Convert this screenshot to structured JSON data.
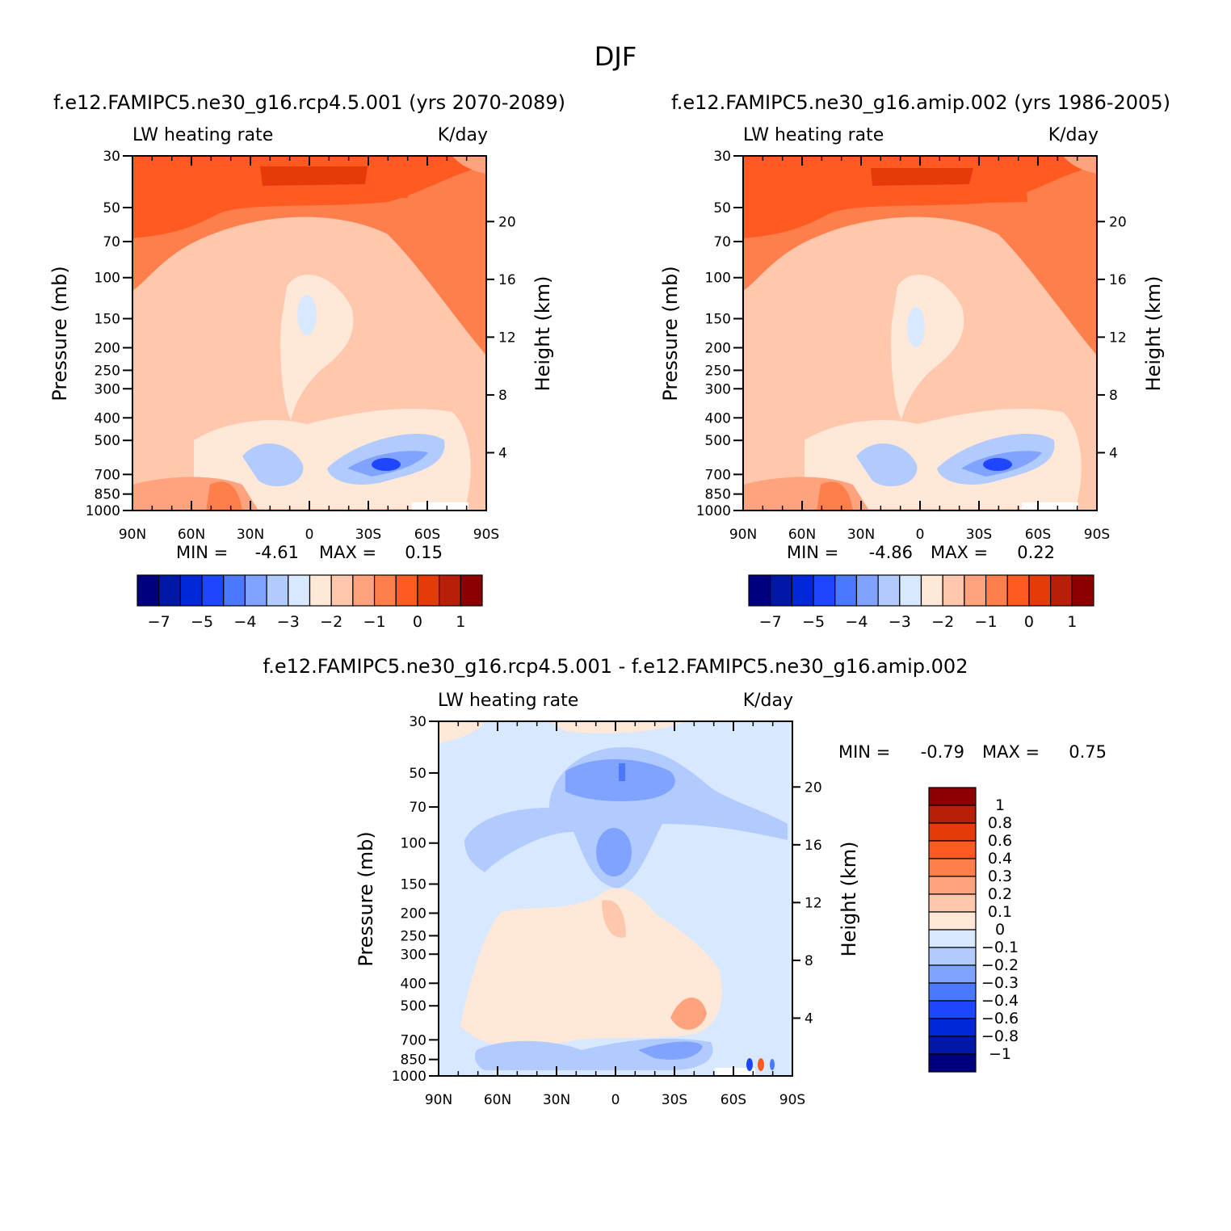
{
  "figure_title": "DJF",
  "colors": {
    "palette": [
      "#00007f",
      "#0018a8",
      "#0028d8",
      "#1e46ff",
      "#4a79ff",
      "#7fa3ff",
      "#b2cbff",
      "#d8e8ff",
      "#ffe8d8",
      "#ffc8ad",
      "#ffa37f",
      "#ff7f4c",
      "#ff5a20",
      "#e63a0a",
      "#b81e08",
      "#8c0000"
    ],
    "diff_palette": [
      "#00007f",
      "#0018a8",
      "#0028d8",
      "#1e46ff",
      "#4a79ff",
      "#7fa3ff",
      "#b2cbff",
      "#d8e8ff",
      "#ffe8d8",
      "#ffc8ad",
      "#ffa37f",
      "#ff7f4c",
      "#ff5a20",
      "#e63a0a",
      "#b81e08",
      "#8c0000"
    ]
  },
  "chart_data": [
    {
      "id": "panel-future",
      "type": "contour",
      "title": "f.e12.FAMIPC5.ne30_g16.rcp4.5.001 (yrs 2070-2089)",
      "left_label": "LW heating rate",
      "right_label": "K/day",
      "ylabel": "Pressure (mb)",
      "y2label": "Height (km)",
      "x_ticks": [
        "90N",
        "60N",
        "30N",
        "0",
        "30S",
        "60S",
        "90S"
      ],
      "x_range": [
        90,
        -90
      ],
      "y_ticks": [
        "30",
        "50",
        "70",
        "100",
        "150",
        "200",
        "250",
        "300",
        "400",
        "500",
        "700",
        "850",
        "1000"
      ],
      "y_range": [
        30,
        1000
      ],
      "height_ticks": [
        "20",
        "16",
        "12",
        "8",
        "4"
      ],
      "min_label": "MIN =",
      "min_value": "-4.61",
      "max_label": "MAX =",
      "max_value": "0.15",
      "colorbar_labels": [
        "-7",
        "-5",
        "-4",
        "-3",
        "-2",
        "-1",
        "0",
        "1"
      ]
    },
    {
      "id": "panel-control",
      "type": "contour",
      "title": "f.e12.FAMIPC5.ne30_g16.amip.002 (yrs 1986-2005)",
      "left_label": "LW heating rate",
      "right_label": "K/day",
      "ylabel": "Pressure (mb)",
      "y2label": "Height (km)",
      "x_ticks": [
        "90N",
        "60N",
        "30N",
        "0",
        "30S",
        "60S",
        "90S"
      ],
      "x_range": [
        90,
        -90
      ],
      "y_ticks": [
        "30",
        "50",
        "70",
        "100",
        "150",
        "200",
        "250",
        "300",
        "400",
        "500",
        "700",
        "850",
        "1000"
      ],
      "y_range": [
        30,
        1000
      ],
      "height_ticks": [
        "20",
        "16",
        "12",
        "8",
        "4"
      ],
      "min_label": "MIN =",
      "min_value": "-4.86",
      "max_label": "MAX =",
      "max_value": "0.22",
      "colorbar_labels": [
        "-7",
        "-5",
        "-4",
        "-3",
        "-2",
        "-1",
        "0",
        "1"
      ]
    },
    {
      "id": "panel-diff",
      "type": "contour",
      "title": "f.e12.FAMIPC5.ne30_g16.rcp4.5.001 - f.e12.FAMIPC5.ne30_g16.amip.002",
      "left_label": "LW heating rate",
      "right_label": "K/day",
      "ylabel": "Pressure (mb)",
      "y2label": "Height (km)",
      "x_ticks": [
        "90N",
        "60N",
        "30N",
        "0",
        "30S",
        "60S",
        "90S"
      ],
      "x_range": [
        90,
        -90
      ],
      "y_ticks": [
        "30",
        "50",
        "70",
        "100",
        "150",
        "200",
        "250",
        "300",
        "400",
        "500",
        "700",
        "850",
        "1000"
      ],
      "y_range": [
        30,
        1000
      ],
      "height_ticks": [
        "20",
        "16",
        "12",
        "8",
        "4"
      ],
      "min_label": "MIN =",
      "min_value": "-0.79",
      "max_label": "MAX =",
      "max_value": "0.75",
      "colorbar_labels": [
        "1",
        "0.8",
        "0.6",
        "0.4",
        "0.3",
        "0.2",
        "0.1",
        "0",
        "-0.1",
        "-0.2",
        "-0.3",
        "-0.4",
        "-0.6",
        "-0.8",
        "-1"
      ]
    }
  ]
}
